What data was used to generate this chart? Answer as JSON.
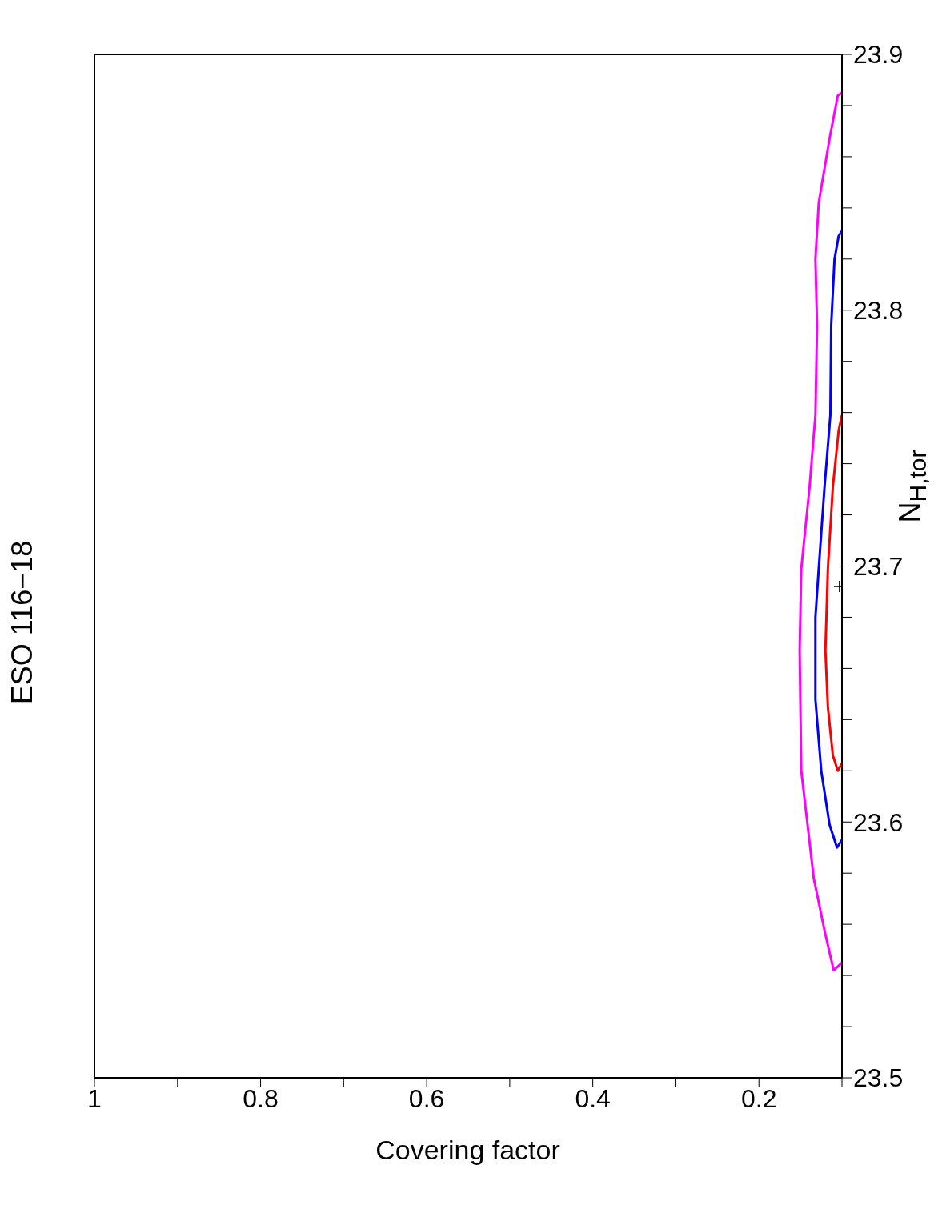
{
  "chart_data": {
    "type": "line",
    "title": "ESO 116−18",
    "xlabel": "Covering factor",
    "ylabel": "N$_{H,tor}$",
    "xlim": [
      1,
      0.1
    ],
    "ylim": [
      23.5,
      23.9
    ],
    "xticks": [
      1,
      {
        "value": 0.9,
        "label": null
      },
      0.8,
      {
        "value": 0.7,
        "label": null
      },
      0.6,
      {
        "value": 0.5,
        "label": null
      },
      0.4,
      {
        "value": 0.3,
        "label": null
      },
      0.2,
      {
        "value": 0.1,
        "label": null
      }
    ],
    "yticks": [
      23.5,
      {
        "value": 23.52,
        "label": null
      },
      {
        "value": 23.54,
        "label": null
      },
      {
        "value": 23.56,
        "label": null
      },
      {
        "value": 23.58,
        "label": null
      },
      23.6,
      {
        "value": 23.62,
        "label": null
      },
      {
        "value": 23.64,
        "label": null
      },
      {
        "value": 23.66,
        "label": null
      },
      {
        "value": 23.68,
        "label": null
      },
      23.7,
      {
        "value": 23.72,
        "label": null
      },
      {
        "value": 23.74,
        "label": null
      },
      {
        "value": 23.76,
        "label": null
      },
      {
        "value": 23.78,
        "label": null
      },
      23.8,
      {
        "value": 23.82,
        "label": null
      },
      {
        "value": 23.84,
        "label": null
      },
      {
        "value": 23.86,
        "label": null
      },
      {
        "value": 23.88,
        "label": null
      },
      23.9
    ],
    "marker": "none",
    "line_style": "solid",
    "series": [
      {
        "color": "#ff00ff",
        "x": [
          0.1,
          0.11,
          0.12,
          0.134,
          0.149,
          0.151,
          0.149,
          0.139,
          0.132,
          0.13,
          0.132,
          0.128,
          0.115,
          0.105,
          0.1
        ],
        "values": [
          23.545,
          23.542,
          23.556,
          23.578,
          23.62,
          23.667,
          23.699,
          23.731,
          23.759,
          23.794,
          23.82,
          23.842,
          23.867,
          23.884,
          23.885
        ]
      },
      {
        "color": "#0000ff",
        "x": [
          0.1,
          0.106,
          0.115,
          0.125,
          0.132,
          0.132,
          0.128,
          0.121,
          0.114,
          0.113,
          0.109,
          0.104,
          0.1
        ],
        "values": [
          23.593,
          23.59,
          23.599,
          23.62,
          23.648,
          23.68,
          23.699,
          23.731,
          23.759,
          23.794,
          23.82,
          23.829,
          23.831
        ]
      },
      {
        "color": "#ff0000",
        "x": [
          0.1,
          0.105,
          0.111,
          0.117,
          0.12,
          0.117,
          0.111,
          0.104,
          0.1
        ],
        "values": [
          23.623,
          23.62,
          23.626,
          23.645,
          23.667,
          23.699,
          23.731,
          23.753,
          23.759
        ]
      },
      {
        "type": "scatter",
        "marker": "cross",
        "color": "#000000",
        "x": [
          0.103
        ],
        "values": [
          23.692
        ]
      }
    ]
  }
}
